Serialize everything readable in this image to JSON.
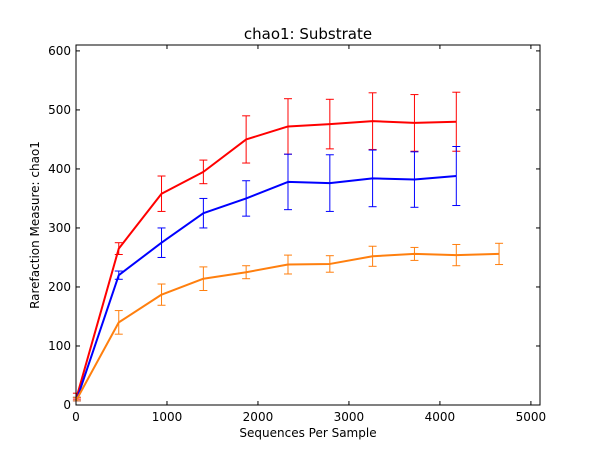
{
  "chart_data": {
    "type": "line",
    "title": "chao1: Substrate",
    "xlabel": "Sequences Per Sample",
    "ylabel": "Rarefaction Measure: chao1",
    "xlim": [
      0,
      5100
    ],
    "ylim": [
      0,
      610
    ],
    "xticks": [
      0,
      1000,
      2000,
      3000,
      4000,
      5000
    ],
    "xtick_labels": [
      "0",
      "1000",
      "2000",
      "3000",
      "4000",
      "5000"
    ],
    "yticks": [
      0,
      100,
      200,
      300,
      400,
      500,
      600
    ],
    "ytick_labels": [
      "0",
      "100",
      "200",
      "300",
      "400",
      "500",
      "600"
    ],
    "grid": false,
    "legend": "none",
    "series": [
      {
        "color": "#ff0000",
        "x": [
          10,
          470,
          940,
          1400,
          1870,
          2330,
          2790,
          3260,
          3720,
          4180
        ],
        "y": [
          15,
          265,
          358,
          395,
          450,
          472,
          476,
          481,
          478,
          480
        ],
        "err": [
          5,
          10,
          30,
          20,
          40,
          47,
          42,
          48,
          48,
          50
        ]
      },
      {
        "color": "#0000ff",
        "x": [
          10,
          470,
          940,
          1400,
          1870,
          2330,
          2790,
          3260,
          3720,
          4180
        ],
        "y": [
          10,
          220,
          275,
          325,
          350,
          378,
          376,
          384,
          382,
          388
        ],
        "err": [
          3,
          7,
          25,
          25,
          30,
          47,
          48,
          48,
          47,
          50
        ]
      },
      {
        "color": "#ff7f0e",
        "x": [
          10,
          470,
          940,
          1400,
          1870,
          2330,
          2790,
          3260,
          3720,
          4180,
          4650
        ],
        "y": [
          10,
          140,
          187,
          214,
          225,
          238,
          239,
          252,
          256,
          254,
          256
        ],
        "err": [
          3,
          20,
          18,
          20,
          11,
          16,
          14,
          17,
          11,
          18,
          18
        ]
      }
    ]
  }
}
